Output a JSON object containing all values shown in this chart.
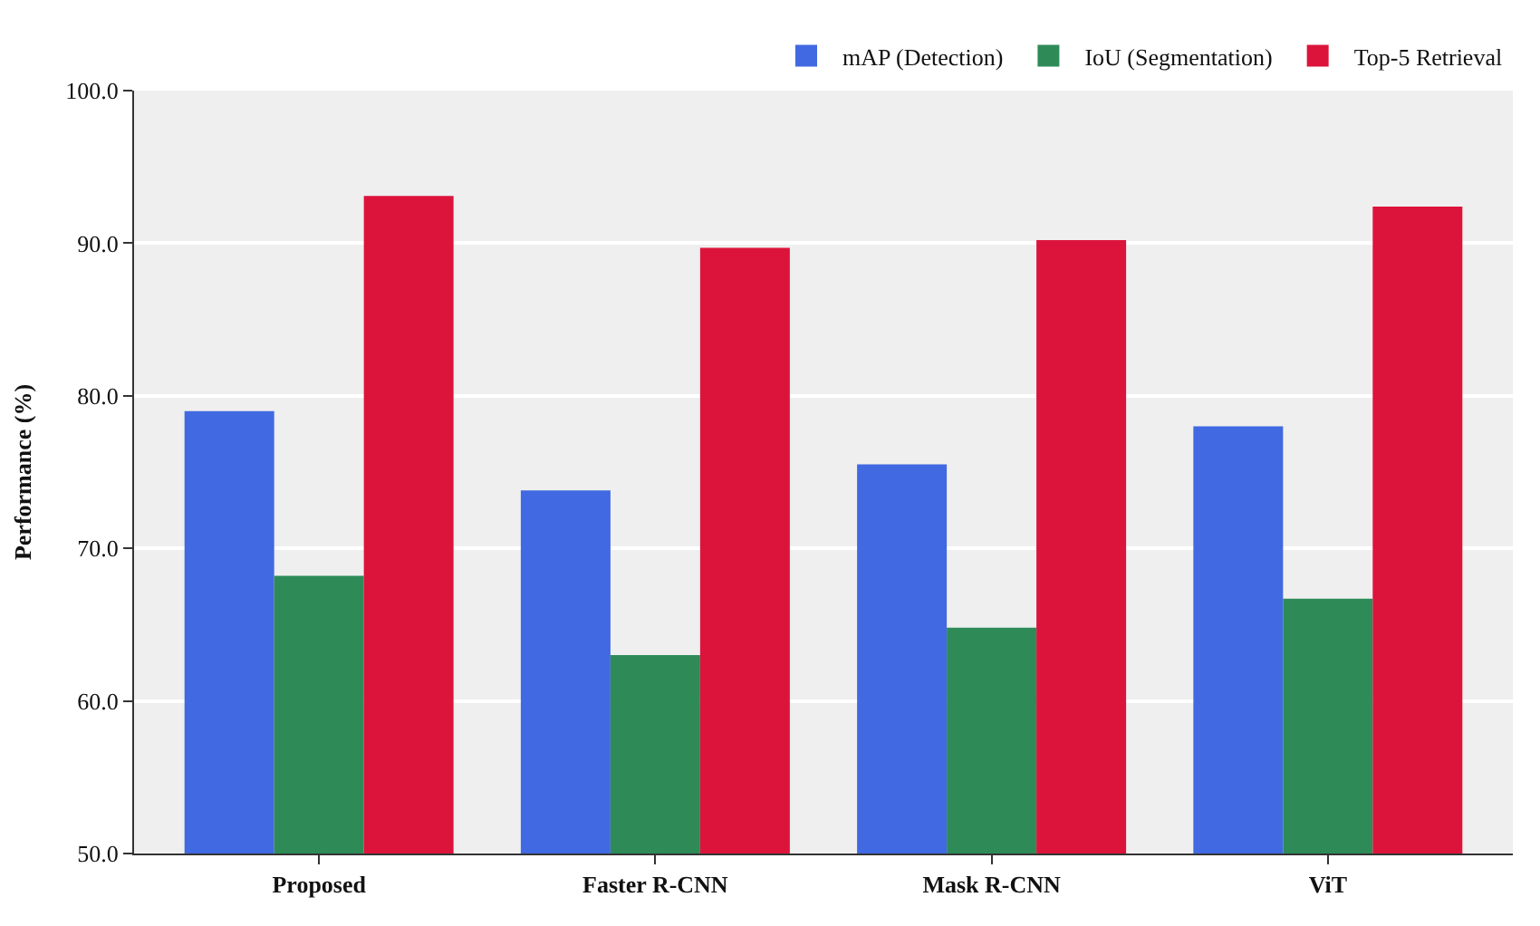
{
  "chart_data": {
    "type": "bar",
    "ylabel": "Performance (%)",
    "categories": [
      "Proposed",
      "Faster R-CNN",
      "Mask R-CNN",
      "ViT"
    ],
    "series": [
      {
        "name": "mAP (Detection)",
        "color": "#4169e1",
        "values": [
          79.0,
          73.8,
          75.5,
          78.0
        ]
      },
      {
        "name": "IoU (Segmentation)",
        "color": "#2e8b57",
        "values": [
          68.2,
          63.0,
          64.8,
          66.7
        ]
      },
      {
        "name": "Top-5 Retrieval",
        "color": "#dc143c",
        "values": [
          93.1,
          89.7,
          90.2,
          92.4
        ]
      }
    ],
    "ylim": [
      50,
      100
    ],
    "yticks": [
      {
        "value": 50,
        "label": "50.0"
      },
      {
        "value": 60,
        "label": "60.0"
      },
      {
        "value": 70,
        "label": "70.0"
      },
      {
        "value": 80,
        "label": "80.0"
      },
      {
        "value": 90,
        "label": "90.0"
      },
      {
        "value": 100,
        "label": "100.0"
      }
    ],
    "grid": "y",
    "legend": "top right"
  }
}
